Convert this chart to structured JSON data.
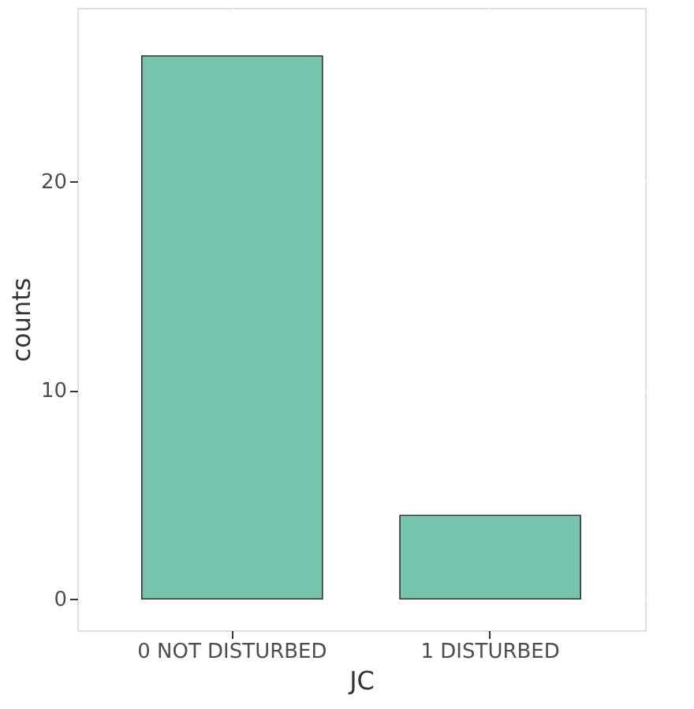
{
  "chart_data": {
    "type": "bar",
    "xlabel": "JC",
    "ylabel": "counts",
    "categories": [
      "0 NOT DISTURBED",
      "1 DISTURBED"
    ],
    "values": [
      26,
      4
    ],
    "color": "#76c4ad",
    "ylim": [
      -1.5,
      28.3
    ],
    "yticks": [
      0,
      10,
      20
    ],
    "grid": true
  }
}
